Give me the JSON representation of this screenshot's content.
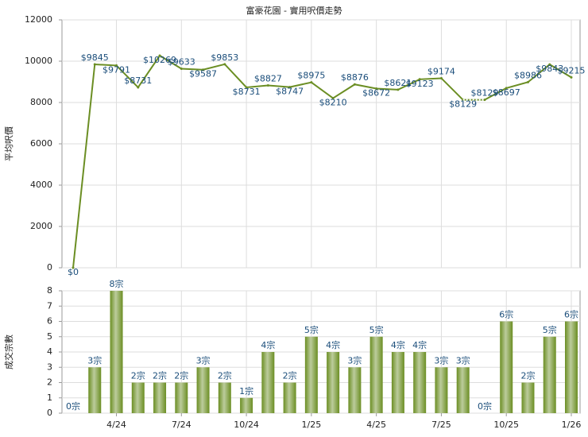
{
  "chart_data": [
    {
      "type": "line",
      "title": "富豪花園 - 實用呎價走勢",
      "y_label": "平均呎價",
      "color": "#6b8e23",
      "values": [
        0,
        9845,
        9791,
        8731,
        10269,
        9633,
        9587,
        9853,
        8731,
        8827,
        8747,
        8975,
        8210,
        8876,
        8672,
        8621,
        9123,
        9174,
        8129,
        8129,
        8697,
        8986,
        9843,
        9215
      ],
      "value_labels": [
        "$0",
        "$9845",
        "$9791",
        "$8731",
        "$10269",
        "$9633",
        "$9587",
        "$9853",
        "$8731",
        "$8827",
        "$8747",
        "$8975",
        "$8210",
        "$8876",
        "$8672",
        "$8621",
        "$9123",
        "$9174",
        "$8129",
        "$8129",
        "$8697",
        "$8986",
        "$9843",
        "$9215"
      ],
      "ylim": [
        0,
        12000
      ],
      "yticks": [
        0,
        2000,
        4000,
        6000,
        8000,
        10000,
        12000
      ],
      "grid": true
    },
    {
      "type": "bar",
      "y_label": "成交宗數",
      "color": "#6b8e23",
      "categories": [
        null,
        null,
        "4/24",
        null,
        null,
        "7/24",
        null,
        null,
        "10/24",
        null,
        null,
        "1/25",
        null,
        null,
        "4/25",
        null,
        null,
        "7/25",
        null,
        null,
        "10/25",
        null,
        null,
        "1/26"
      ],
      "values": [
        0,
        3,
        8,
        2,
        2,
        2,
        3,
        2,
        1,
        4,
        2,
        5,
        4,
        3,
        5,
        4,
        4,
        3,
        3,
        0,
        6,
        2,
        5,
        6
      ],
      "value_labels": [
        "0宗",
        "3宗",
        "8宗",
        "2宗",
        "2宗",
        "2宗",
        "3宗",
        "2宗",
        "1宗",
        "4宗",
        "2宗",
        "5宗",
        "4宗",
        "3宗",
        "5宗",
        "4宗",
        "4宗",
        "3宗",
        "3宗",
        "0宗",
        "6宗",
        "2宗",
        "5宗",
        "6宗"
      ],
      "ylim": [
        0,
        8
      ],
      "yticks": [
        0,
        1,
        2,
        3,
        4,
        5,
        6,
        7,
        8
      ],
      "grid": true
    }
  ]
}
